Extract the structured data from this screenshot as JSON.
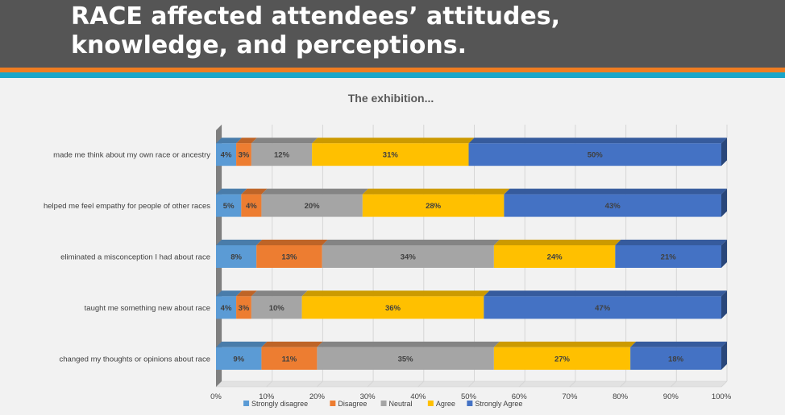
{
  "slide": {
    "title": "RACE affected attendees’ attitudes,\nknowledge, and perceptions."
  },
  "colors": {
    "header_bg": "#555555",
    "stripe_orange": "#ef7d22",
    "stripe_blue": "#1aa6c9"
  },
  "chart_data": {
    "type": "bar",
    "orientation": "horizontal",
    "stacked": true,
    "percent": true,
    "title": "The exhibition...",
    "categories": [
      "made me think about my own race or ancestry",
      "helped me feel empathy for people of other races",
      "eliminated a misconception I had about race",
      "taught me something new about race",
      "changed my thoughts or opinions about race"
    ],
    "series": [
      {
        "name": "Strongly disagree",
        "color": "#5b9bd5",
        "values": [
          4,
          5,
          8,
          4,
          9
        ]
      },
      {
        "name": "Disagree",
        "color": "#ed7d31",
        "values": [
          3,
          4,
          13,
          3,
          11
        ]
      },
      {
        "name": "Neutral",
        "color": "#a5a5a5",
        "values": [
          12,
          20,
          34,
          10,
          35
        ]
      },
      {
        "name": "Agree",
        "color": "#ffc000",
        "values": [
          31,
          28,
          24,
          36,
          27
        ]
      },
      {
        "name": "Strongly Agree",
        "color": "#4472c4",
        "values": [
          50,
          43,
          21,
          47,
          18
        ]
      }
    ],
    "xlim": [
      0,
      100
    ],
    "xticks": [
      "0%",
      "10%",
      "20%",
      "30%",
      "40%",
      "50%",
      "60%",
      "70%",
      "80%",
      "90%",
      "100%"
    ],
    "data_label_suffix": "%",
    "legend": "bottom",
    "grid": true
  }
}
